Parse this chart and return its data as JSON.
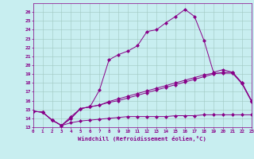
{
  "xlabel": "Windchill (Refroidissement éolien,°C)",
  "xlim": [
    0,
    23
  ],
  "ylim": [
    13,
    27
  ],
  "yticks": [
    13,
    14,
    15,
    16,
    17,
    18,
    19,
    20,
    21,
    22,
    23,
    24,
    25,
    26
  ],
  "xticks": [
    0,
    1,
    2,
    3,
    4,
    5,
    6,
    7,
    8,
    9,
    10,
    11,
    12,
    13,
    14,
    15,
    16,
    17,
    18,
    19,
    20,
    21,
    22,
    23
  ],
  "bg_color": "#c8eef0",
  "line_color": "#880088",
  "grid_color": "#a0c8c0",
  "line1_x": [
    0,
    1,
    2,
    3,
    4,
    5,
    6,
    7,
    8,
    9,
    10,
    11,
    12,
    13,
    14,
    15,
    16,
    17,
    18,
    19,
    20,
    21,
    22,
    23
  ],
  "line1_y": [
    14.8,
    14.7,
    13.8,
    13.2,
    14.2,
    15.1,
    15.3,
    17.2,
    20.6,
    21.2,
    21.6,
    22.2,
    23.8,
    24.0,
    24.8,
    25.5,
    26.3,
    25.5,
    22.8,
    19.2,
    19.5,
    19.2,
    18.0,
    16.0
  ],
  "line2_x": [
    0,
    1,
    2,
    3,
    4,
    5,
    6,
    7,
    8,
    9,
    10,
    11,
    12,
    13,
    14,
    15,
    16,
    17,
    18,
    19,
    20,
    21,
    22,
    23
  ],
  "line2_y": [
    14.8,
    14.7,
    13.8,
    13.2,
    14.0,
    15.1,
    15.3,
    15.5,
    15.8,
    16.0,
    16.3,
    16.6,
    16.9,
    17.2,
    17.5,
    17.8,
    18.1,
    18.4,
    18.7,
    19.0,
    19.2,
    19.2,
    18.0,
    16.0
  ],
  "line3_x": [
    0,
    1,
    2,
    3,
    4,
    5,
    6,
    7,
    8,
    9,
    10,
    11,
    12,
    13,
    14,
    15,
    16,
    17,
    18,
    19,
    20,
    21,
    22,
    23
  ],
  "line3_y": [
    14.8,
    14.7,
    13.8,
    13.2,
    13.5,
    13.7,
    13.8,
    13.9,
    14.0,
    14.1,
    14.2,
    14.2,
    14.2,
    14.2,
    14.2,
    14.3,
    14.3,
    14.3,
    14.4,
    14.4,
    14.4,
    14.4,
    14.4,
    14.4
  ],
  "line4_x": [
    0,
    1,
    2,
    3,
    4,
    5,
    6,
    7,
    8,
    9,
    10,
    11,
    12,
    13,
    14,
    15,
    16,
    17,
    18,
    19,
    20,
    21,
    22,
    23
  ],
  "line4_y": [
    14.8,
    14.7,
    13.8,
    13.2,
    14.0,
    15.1,
    15.3,
    15.5,
    15.9,
    16.2,
    16.5,
    16.8,
    17.1,
    17.4,
    17.7,
    18.0,
    18.3,
    18.6,
    18.9,
    19.1,
    19.1,
    19.1,
    17.9,
    15.9
  ]
}
